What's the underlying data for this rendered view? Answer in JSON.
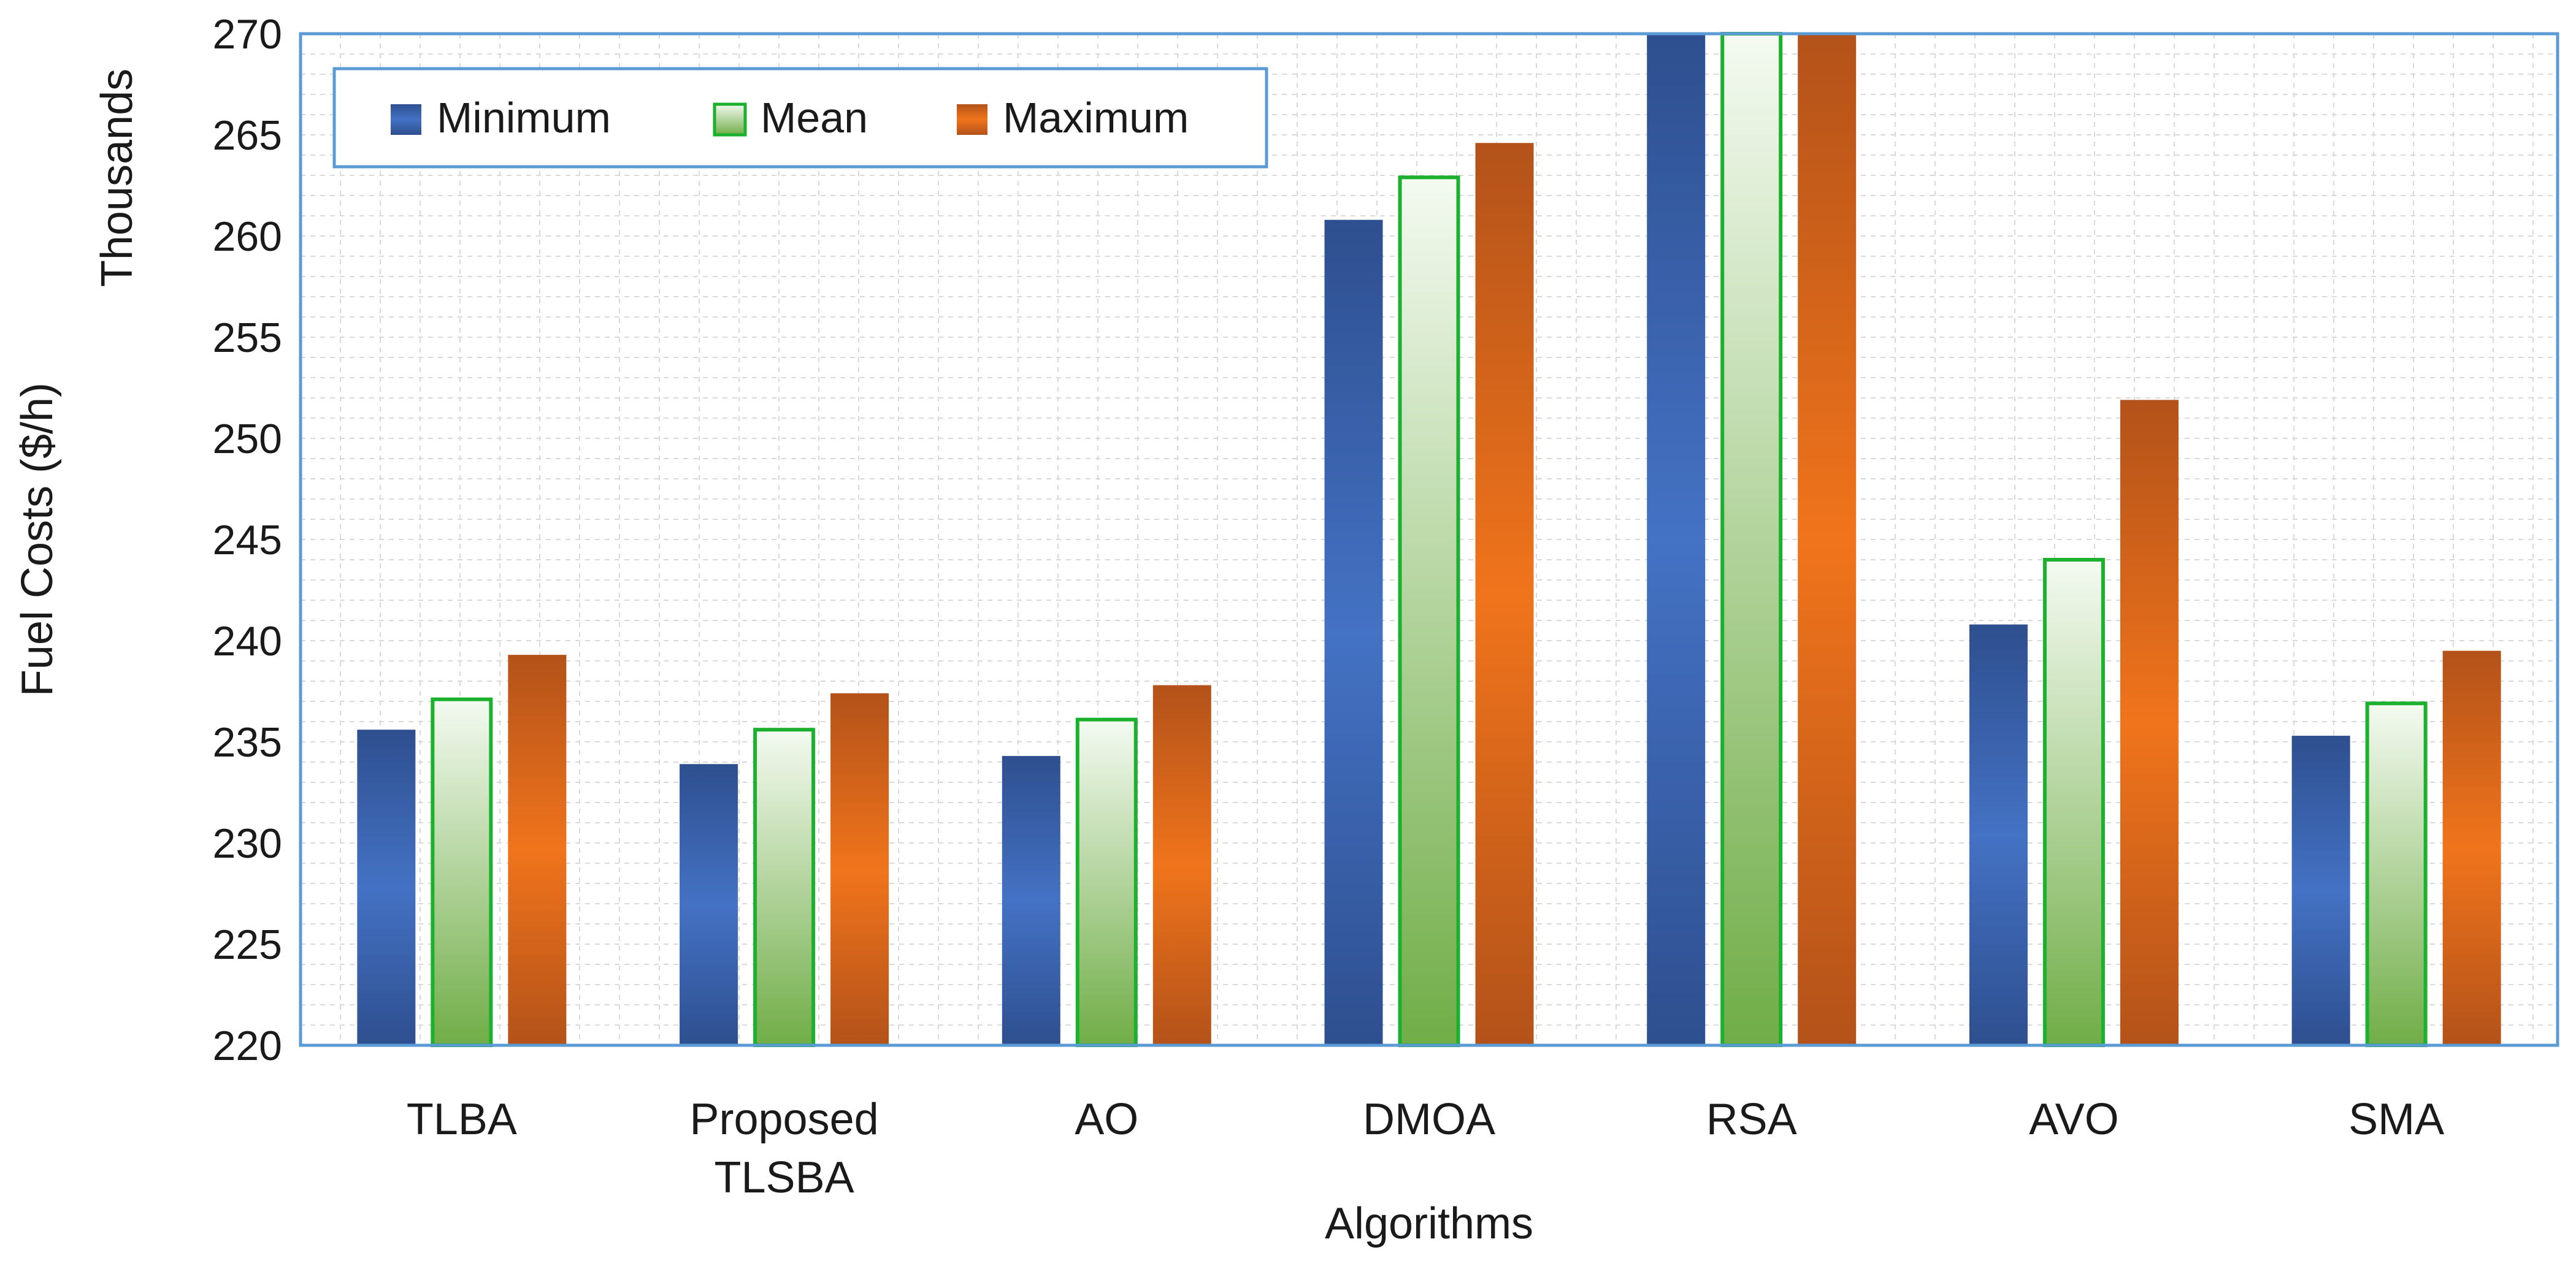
{
  "chart_data": {
    "type": "bar",
    "categories": [
      "TLBA",
      "Proposed TLSBA",
      "AO",
      "DMOA",
      "RSA",
      "AVO",
      "SMA"
    ],
    "category_lines": [
      [
        "TLBA"
      ],
      [
        "Proposed",
        "TLSBA"
      ],
      [
        "AO"
      ],
      [
        "DMOA"
      ],
      [
        "RSA"
      ],
      [
        "AVO"
      ],
      [
        "SMA"
      ]
    ],
    "series": [
      {
        "name": "Minimum",
        "values": [
          235.6,
          233.9,
          234.3,
          260.8,
          270,
          240.8,
          235.3
        ]
      },
      {
        "name": "Mean",
        "values": [
          237.1,
          235.6,
          236.1,
          262.9,
          270,
          244.0,
          236.9
        ]
      },
      {
        "name": "Maximum",
        "values": [
          239.3,
          237.4,
          237.8,
          264.6,
          270,
          251.9,
          239.5
        ]
      }
    ],
    "xlabel": "Algorithms",
    "ylabel": "Fuel Costs ($/h)",
    "unit_label": "Thousands",
    "ylim": [
      220,
      270
    ],
    "yticks": [
      220,
      225,
      230,
      235,
      240,
      245,
      250,
      255,
      260,
      265,
      270
    ],
    "grid": true,
    "legend_position": "top-left",
    "colors": {
      "minimum_light": "#4472C4",
      "minimum_dark": "#2E4F8F",
      "mean_light": "#F4FAF1",
      "mean_dark": "#70AD47",
      "mean_border": "#1BB12E",
      "maximum_light": "#F0741B",
      "maximum_dark": "#B3521A",
      "frame": "#5B9BD5",
      "grid": "#D9D9D9"
    }
  }
}
